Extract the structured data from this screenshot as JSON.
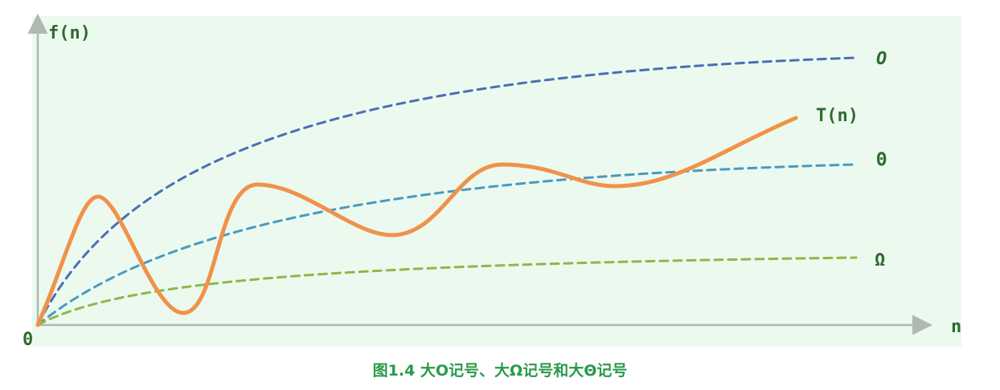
{
  "axes": {
    "y_label": "f(n)",
    "x_label": "n",
    "origin": "0"
  },
  "curves": [
    {
      "label": "O"
    },
    {
      "label": "T(n)"
    },
    {
      "label": "Θ"
    },
    {
      "label": "Ω"
    }
  ],
  "caption": "图1.4 大O记号、大Ω记号和大Θ记号"
}
